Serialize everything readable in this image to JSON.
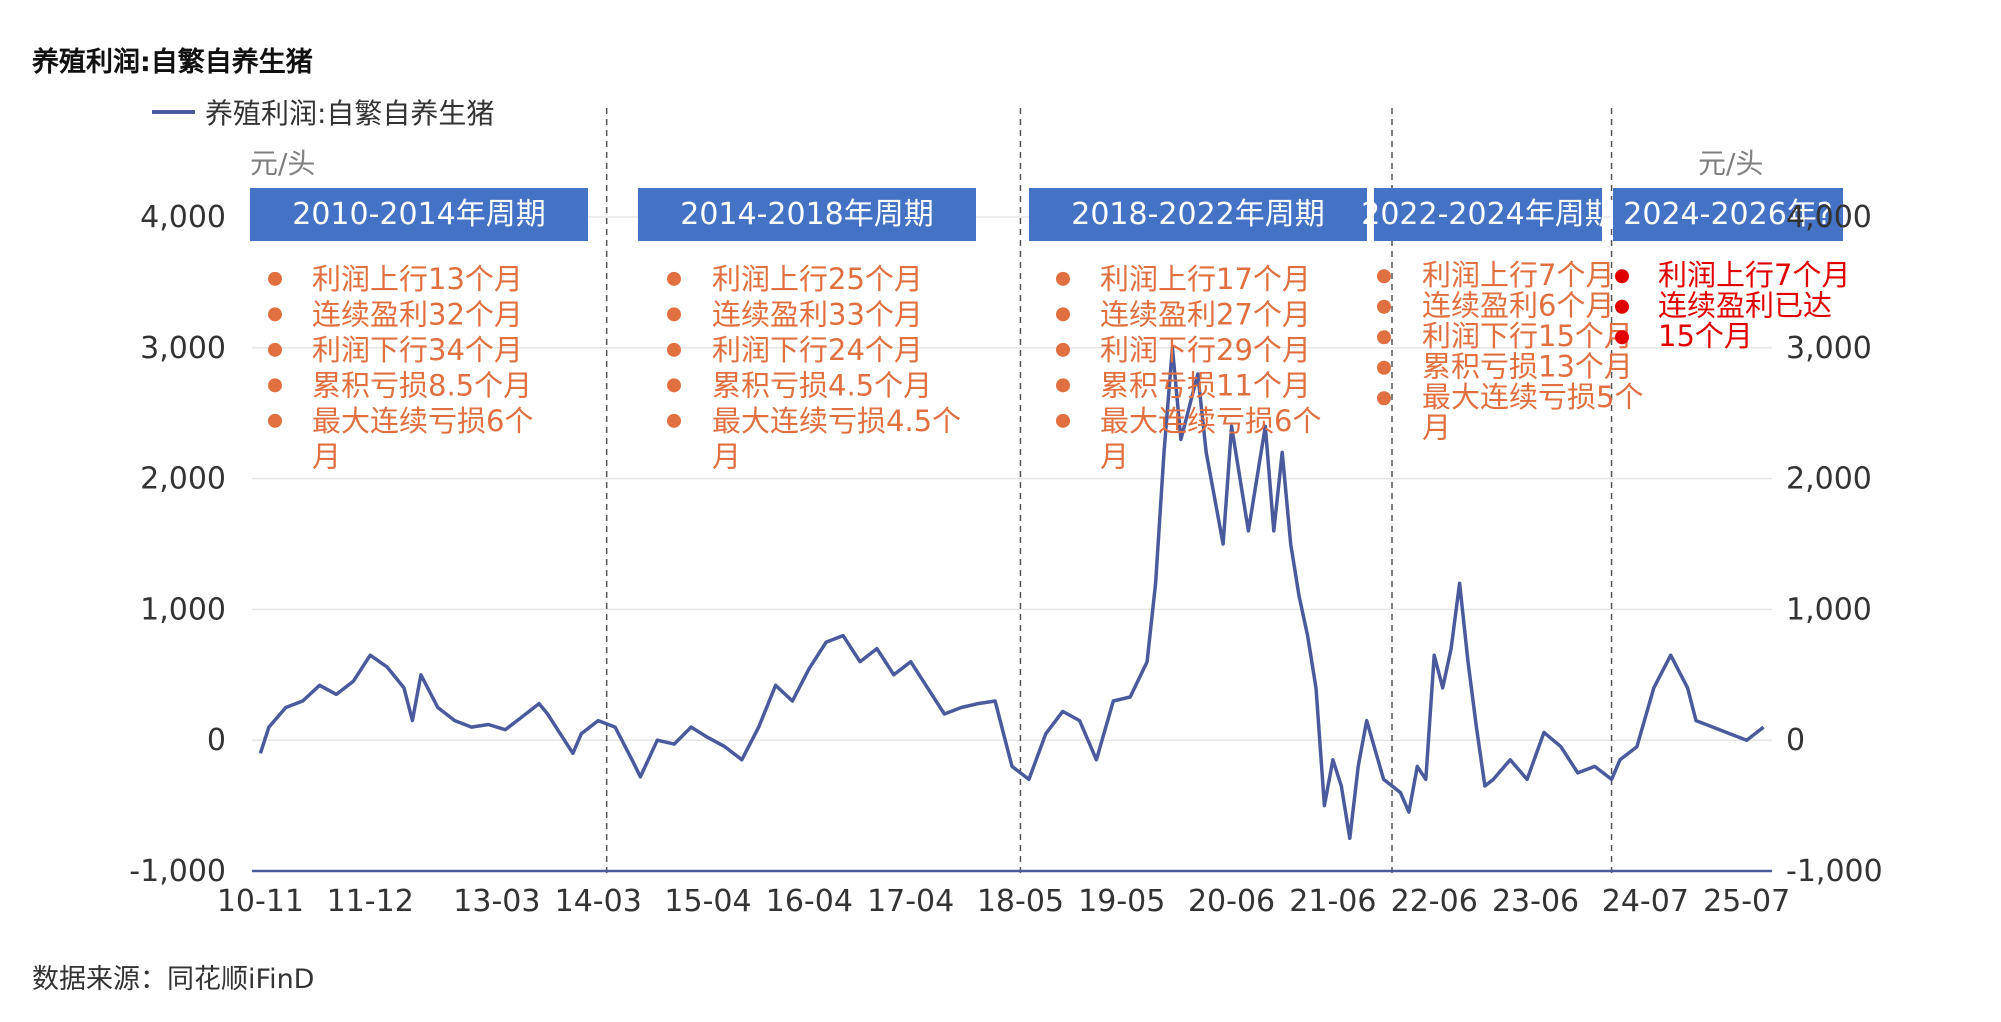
{
  "title": "养殖利润:自繁自养生猪",
  "source": "数据来源：同花顺iFinD",
  "colors": {
    "line": "#4a5a9c",
    "header_bg": "#4472c4",
    "annotation": "#e07040",
    "highlight": "#e00000",
    "grid": "#e6e6e6",
    "text": "#333333",
    "unit": "#7f7f7f"
  },
  "chart_data": {
    "type": "line",
    "title": "养殖利润:自繁自养生猪",
    "legend": {
      "label": "养殖利润:自繁自养生猪",
      "position": "top-left"
    },
    "y_unit_left": "元/头",
    "y_unit_right": "元/头",
    "ylim": [
      -1000,
      4000
    ],
    "yticks": [
      -1000,
      0,
      1000,
      2000,
      3000,
      4000
    ],
    "ytick_labels": [
      "-1,000",
      "0",
      "1,000",
      "2,000",
      "3,000",
      "4,000"
    ],
    "xlim": [
      "2010-10",
      "2025-10"
    ],
    "xticks": [
      {
        "date": "2010-11",
        "label": "10-11"
      },
      {
        "date": "2011-12",
        "label": "11-12"
      },
      {
        "date": "2013-03",
        "label": "13-03"
      },
      {
        "date": "2014-03",
        "label": "14-03"
      },
      {
        "date": "2015-04",
        "label": "15-04"
      },
      {
        "date": "2016-04",
        "label": "16-04"
      },
      {
        "date": "2017-04",
        "label": "17-04"
      },
      {
        "date": "2018-05",
        "label": "18-05"
      },
      {
        "date": "2019-05",
        "label": "19-05"
      },
      {
        "date": "2020-06",
        "label": "20-06"
      },
      {
        "date": "2021-06",
        "label": "21-06"
      },
      {
        "date": "2022-06",
        "label": "22-06"
      },
      {
        "date": "2023-06",
        "label": "23-06"
      },
      {
        "date": "2024-07",
        "label": "24-07"
      },
      {
        "date": "2025-07",
        "label": "25-07"
      }
    ],
    "grid": true,
    "cycle_dividers": [
      "2014-04",
      "2018-05",
      "2022-01",
      "2024-03"
    ],
    "series": [
      {
        "name": "养殖利润:自繁自养生猪",
        "points": [
          [
            "2010-11",
            -100
          ],
          [
            "2010-12",
            100
          ],
          [
            "2011-02",
            250
          ],
          [
            "2011-04",
            300
          ],
          [
            "2011-06",
            420
          ],
          [
            "2011-08",
            350
          ],
          [
            "2011-10",
            450
          ],
          [
            "2011-12",
            650
          ],
          [
            "2012-02",
            560
          ],
          [
            "2012-04",
            400
          ],
          [
            "2012-05",
            150
          ],
          [
            "2012-06",
            500
          ],
          [
            "2012-08",
            250
          ],
          [
            "2012-10",
            150
          ],
          [
            "2012-12",
            100
          ],
          [
            "2013-02",
            120
          ],
          [
            "2013-04",
            80
          ],
          [
            "2013-06",
            180
          ],
          [
            "2013-08",
            280
          ],
          [
            "2013-09",
            200
          ],
          [
            "2013-11",
            0
          ],
          [
            "2013-12",
            -100
          ],
          [
            "2014-01",
            50
          ],
          [
            "2014-03",
            150
          ],
          [
            "2014-05",
            100
          ],
          [
            "2014-07",
            -150
          ],
          [
            "2014-08",
            -280
          ],
          [
            "2014-10",
            0
          ],
          [
            "2014-12",
            -30
          ],
          [
            "2015-02",
            100
          ],
          [
            "2015-04",
            20
          ],
          [
            "2015-06",
            -50
          ],
          [
            "2015-08",
            -150
          ],
          [
            "2015-10",
            100
          ],
          [
            "2015-12",
            420
          ],
          [
            "2016-02",
            300
          ],
          [
            "2016-04",
            550
          ],
          [
            "2016-06",
            750
          ],
          [
            "2016-08",
            800
          ],
          [
            "2016-10",
            600
          ],
          [
            "2016-12",
            700
          ],
          [
            "2017-02",
            500
          ],
          [
            "2017-04",
            600
          ],
          [
            "2017-06",
            400
          ],
          [
            "2017-08",
            200
          ],
          [
            "2017-10",
            250
          ],
          [
            "2017-12",
            280
          ],
          [
            "2018-02",
            300
          ],
          [
            "2018-04",
            -200
          ],
          [
            "2018-06",
            -300
          ],
          [
            "2018-08",
            50
          ],
          [
            "2018-10",
            220
          ],
          [
            "2018-12",
            150
          ],
          [
            "2019-02",
            -150
          ],
          [
            "2019-04",
            300
          ],
          [
            "2019-06",
            330
          ],
          [
            "2019-08",
            600
          ],
          [
            "2019-09",
            1200
          ],
          [
            "2019-10",
            2200
          ],
          [
            "2019-11",
            3000
          ],
          [
            "2019-12",
            2300
          ],
          [
            "2020-02",
            2800
          ],
          [
            "2020-03",
            2200
          ],
          [
            "2020-05",
            1500
          ],
          [
            "2020-06",
            2400
          ],
          [
            "2020-08",
            1600
          ],
          [
            "2020-10",
            2400
          ],
          [
            "2020-11",
            1600
          ],
          [
            "2020-12",
            2200
          ],
          [
            "2021-01",
            1500
          ],
          [
            "2021-02",
            1100
          ],
          [
            "2021-03",
            800
          ],
          [
            "2021-04",
            400
          ],
          [
            "2021-05",
            -500
          ],
          [
            "2021-06",
            -150
          ],
          [
            "2021-07",
            -350
          ],
          [
            "2021-08",
            -750
          ],
          [
            "2021-09",
            -200
          ],
          [
            "2021-10",
            150
          ],
          [
            "2021-12",
            -300
          ],
          [
            "2022-02",
            -400
          ],
          [
            "2022-03",
            -550
          ],
          [
            "2022-04",
            -200
          ],
          [
            "2022-05",
            -300
          ],
          [
            "2022-06",
            650
          ],
          [
            "2022-07",
            400
          ],
          [
            "2022-08",
            700
          ],
          [
            "2022-09",
            1200
          ],
          [
            "2022-10",
            600
          ],
          [
            "2022-11",
            100
          ],
          [
            "2022-12",
            -350
          ],
          [
            "2023-01",
            -300
          ],
          [
            "2023-03",
            -150
          ],
          [
            "2023-05",
            -300
          ],
          [
            "2023-07",
            60
          ],
          [
            "2023-09",
            -50
          ],
          [
            "2023-11",
            -250
          ],
          [
            "2024-01",
            -200
          ],
          [
            "2024-03",
            -300
          ],
          [
            "2024-04",
            -150
          ],
          [
            "2024-06",
            -50
          ],
          [
            "2024-08",
            400
          ],
          [
            "2024-10",
            650
          ],
          [
            "2024-12",
            400
          ],
          [
            "2025-01",
            150
          ],
          [
            "2025-03",
            100
          ],
          [
            "2025-05",
            50
          ],
          [
            "2025-07",
            0
          ],
          [
            "2025-09",
            100
          ]
        ]
      }
    ]
  },
  "cycles": [
    {
      "title": "2010-2014年周期",
      "items": [
        "利润上行13个月",
        "连续盈利32个月",
        "利润下行34个月",
        "累积亏损8.5个月",
        "最大连续亏损6个",
        "月"
      ],
      "highlight": false
    },
    {
      "title": "2014-2018年周期",
      "items": [
        "利润上行25个月",
        "连续盈利33个月",
        "利润下行24个月",
        "累积亏损4.5个月",
        "最大连续亏损4.5个",
        "月"
      ],
      "highlight": false
    },
    {
      "title": "2018-2022年周期",
      "items": [
        "利润上行17个月",
        "连续盈利27个月",
        "利润下行29个月",
        "累积亏损11个月",
        "最大连续亏损6个",
        "月"
      ],
      "highlight": false
    },
    {
      "title": "2022-2024年周期",
      "items": [
        "利润上行7个月",
        "连续盈利6个月",
        "利润下行15个月",
        "累积亏损13个月",
        "最大连续亏损5个",
        "月"
      ],
      "highlight": false
    },
    {
      "title": "2024-2026年?",
      "items": [
        "利润上行7个月",
        "连续盈利已达",
        "15个月"
      ],
      "highlight": true
    }
  ]
}
